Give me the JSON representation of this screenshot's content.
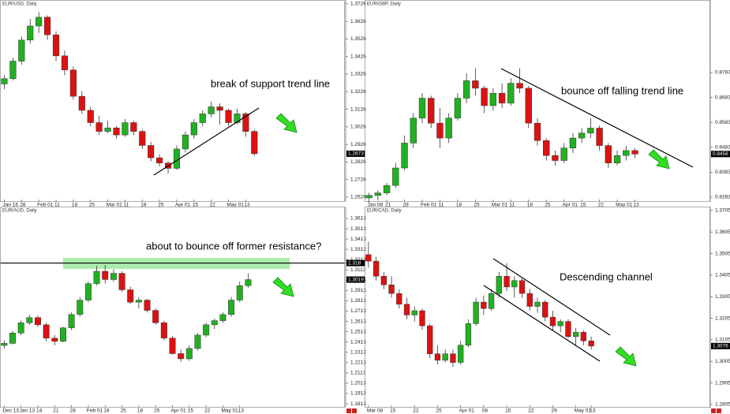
{
  "chart_data": [
    {
      "type": "candlestick",
      "title": "EUR/USD, Daily",
      "annotation": "break of support trend line",
      "categories": [
        "Jan 16",
        null,
        "28",
        null,
        "Feb 01",
        null,
        "11",
        null,
        "18",
        null,
        "25",
        null,
        "Mar 01",
        null,
        "11",
        null,
        "18",
        null,
        "25",
        null,
        "Apr 01",
        null,
        "15",
        null,
        "22",
        null,
        "May 01",
        null,
        "13",
        null
      ],
      "ohlc": [
        [
          1.327,
          1.332,
          1.324,
          1.33
        ],
        [
          1.33,
          1.342,
          1.329,
          1.34
        ],
        [
          1.34,
          1.354,
          1.338,
          1.352
        ],
        [
          1.352,
          1.364,
          1.35,
          1.36
        ],
        [
          1.36,
          1.368,
          1.356,
          1.365
        ],
        [
          1.365,
          1.366,
          1.352,
          1.355
        ],
        [
          1.355,
          1.357,
          1.34,
          1.343
        ],
        [
          1.343,
          1.346,
          1.332,
          1.335
        ],
        [
          1.335,
          1.337,
          1.318,
          1.32
        ],
        [
          1.32,
          1.323,
          1.31,
          1.312
        ],
        [
          1.312,
          1.314,
          1.303,
          1.305
        ],
        [
          1.305,
          1.309,
          1.298,
          1.3
        ],
        [
          1.3,
          1.306,
          1.299,
          1.302
        ],
        [
          1.302,
          1.303,
          1.296,
          1.298
        ],
        [
          1.298,
          1.307,
          1.297,
          1.305
        ],
        [
          1.305,
          1.306,
          1.298,
          1.3
        ],
        [
          1.3,
          1.301,
          1.29,
          1.292
        ],
        [
          1.292,
          1.294,
          1.283,
          1.285
        ],
        [
          1.285,
          1.287,
          1.28,
          1.282
        ],
        [
          1.282,
          1.283,
          1.276,
          1.279
        ],
        [
          1.279,
          1.292,
          1.278,
          1.29
        ],
        [
          1.29,
          1.3,
          1.288,
          1.298
        ],
        [
          1.298,
          1.307,
          1.296,
          1.305
        ],
        [
          1.305,
          1.312,
          1.303,
          1.31
        ],
        [
          1.31,
          1.317,
          1.308,
          1.314
        ],
        [
          1.314,
          1.316,
          1.304,
          1.312
        ],
        [
          1.312,
          1.313,
          1.303,
          1.305
        ],
        [
          1.305,
          1.313,
          1.304,
          1.31
        ],
        [
          1.31,
          1.311,
          1.297,
          1.3
        ],
        [
          1.3,
          1.301,
          1.286,
          1.2873
        ]
      ],
      "ylim": [
        1.2599,
        1.3748
      ],
      "yticks": [
        1.3726,
        1.3626,
        1.3526,
        1.3426,
        1.3326,
        1.3226,
        1.3126,
        1.3026,
        1.2926,
        1.2826,
        1.2726,
        1.2626
      ],
      "last_price": 1.2873,
      "up_color": "#22b022",
      "down_color": "#dd1111"
    },
    {
      "type": "candlestick",
      "title": "EUR/GBP, Daily",
      "annotation": "bounce off falling trend line",
      "categories": [
        "Jan 08",
        null,
        "21",
        null,
        "28",
        null,
        "Feb 01",
        null,
        "11",
        null,
        "18",
        null,
        "25",
        null,
        "Mar 01",
        null,
        "11",
        null,
        "18",
        null,
        "25",
        null,
        "Apr 01",
        null,
        "15",
        null,
        "22",
        null,
        "May 01",
        null,
        "13"
      ],
      "ohlc": [
        [
          0.828,
          0.83,
          0.826,
          0.829
        ],
        [
          0.829,
          0.831,
          0.827,
          0.83
        ],
        [
          0.83,
          0.834,
          0.829,
          0.833
        ],
        [
          0.833,
          0.842,
          0.832,
          0.84
        ],
        [
          0.84,
          0.853,
          0.839,
          0.85
        ],
        [
          0.85,
          0.862,
          0.848,
          0.86
        ],
        [
          0.86,
          0.87,
          0.858,
          0.868
        ],
        [
          0.868,
          0.869,
          0.856,
          0.858
        ],
        [
          0.858,
          0.864,
          0.848,
          0.852
        ],
        [
          0.852,
          0.862,
          0.85,
          0.86
        ],
        [
          0.86,
          0.87,
          0.859,
          0.868
        ],
        [
          0.868,
          0.878,
          0.866,
          0.875
        ],
        [
          0.875,
          0.88,
          0.869,
          0.872
        ],
        [
          0.872,
          0.873,
          0.862,
          0.865
        ],
        [
          0.865,
          0.872,
          0.863,
          0.87
        ],
        [
          0.87,
          0.874,
          0.864,
          0.866
        ],
        [
          0.866,
          0.876,
          0.865,
          0.874
        ],
        [
          0.874,
          0.88,
          0.87,
          0.872
        ],
        [
          0.872,
          0.873,
          0.856,
          0.858
        ],
        [
          0.858,
          0.86,
          0.849,
          0.851
        ],
        [
          0.851,
          0.852,
          0.843,
          0.845
        ],
        [
          0.845,
          0.847,
          0.841,
          0.843
        ],
        [
          0.843,
          0.85,
          0.842,
          0.848
        ],
        [
          0.848,
          0.854,
          0.846,
          0.852
        ],
        [
          0.852,
          0.856,
          0.85,
          0.854
        ],
        [
          0.854,
          0.86,
          0.852,
          0.856
        ],
        [
          0.856,
          0.857,
          0.847,
          0.849
        ],
        [
          0.849,
          0.85,
          0.84,
          0.842
        ],
        [
          0.842,
          0.847,
          0.841,
          0.845
        ],
        [
          0.845,
          0.849,
          0.843,
          0.847
        ],
        [
          0.847,
          0.848,
          0.844,
          0.8456
        ]
      ],
      "ylim": [
        0.8264,
        0.9074
      ],
      "yticks": [
        0.8783,
        0.8683,
        0.8583,
        0.8483,
        0.8383,
        0.8283
      ],
      "last_price": 0.8456,
      "up_color": "#22b022",
      "down_color": "#dd1111"
    },
    {
      "type": "candlestick",
      "title": "EUR/AUD, Daily",
      "annotation": "about to bounce off former resistance?",
      "categories": [
        "Dec 13",
        null,
        "Jan 13",
        null,
        "14",
        null,
        "21",
        null,
        "28",
        null,
        "Feb 01",
        null,
        "18",
        null,
        "25",
        null,
        "18",
        null,
        "25",
        null,
        "Apr 01",
        null,
        "15",
        null,
        "22",
        null,
        "May 01",
        null,
        "13",
        null
      ],
      "ohlc": [
        [
          1.238,
          1.243,
          1.235,
          1.24
        ],
        [
          1.24,
          1.252,
          1.239,
          1.25
        ],
        [
          1.25,
          1.262,
          1.248,
          1.26
        ],
        [
          1.26,
          1.268,
          1.258,
          1.265
        ],
        [
          1.265,
          1.267,
          1.256,
          1.258
        ],
        [
          1.258,
          1.26,
          1.242,
          1.245
        ],
        [
          1.245,
          1.248,
          1.238,
          1.242
        ],
        [
          1.242,
          1.256,
          1.241,
          1.255
        ],
        [
          1.255,
          1.27,
          1.253,
          1.268
        ],
        [
          1.268,
          1.285,
          1.266,
          1.282
        ],
        [
          1.282,
          1.3,
          1.28,
          1.298
        ],
        [
          1.298,
          1.315,
          1.296,
          1.31
        ],
        [
          1.31,
          1.316,
          1.298,
          1.302
        ],
        [
          1.302,
          1.312,
          1.3,
          1.308
        ],
        [
          1.308,
          1.31,
          1.29,
          1.292
        ],
        [
          1.292,
          1.295,
          1.278,
          1.28
        ],
        [
          1.28,
          1.285,
          1.274,
          1.282
        ],
        [
          1.282,
          1.283,
          1.27,
          1.272
        ],
        [
          1.272,
          1.274,
          1.258,
          1.26
        ],
        [
          1.26,
          1.262,
          1.243,
          1.245
        ],
        [
          1.245,
          1.247,
          1.229,
          1.23
        ],
        [
          1.23,
          1.234,
          1.222,
          1.225
        ],
        [
          1.225,
          1.238,
          1.223,
          1.235
        ],
        [
          1.235,
          1.25,
          1.233,
          1.248
        ],
        [
          1.248,
          1.26,
          1.246,
          1.258
        ],
        [
          1.258,
          1.264,
          1.254,
          1.262
        ],
        [
          1.262,
          1.27,
          1.26,
          1.268
        ],
        [
          1.268,
          1.285,
          1.266,
          1.282
        ],
        [
          1.282,
          1.3,
          1.28,
          1.296
        ],
        [
          1.296,
          1.308,
          1.294,
          1.3019
        ]
      ],
      "ylim": [
        1.1775,
        1.3728
      ],
      "yticks": [
        1.3613,
        1.3513,
        1.3413,
        1.3313,
        1.3213,
        1.3113,
        1.3013,
        1.2913,
        1.2813,
        1.2713,
        1.2613,
        1.2513,
        1.2413,
        1.2313,
        1.2213,
        1.2113,
        1.2013,
        1.1913,
        1.1813
      ],
      "resistance": 1.318,
      "last_price": 1.3019,
      "up_color": "#22b022",
      "down_color": "#dd1111"
    },
    {
      "type": "candlestick",
      "title": "EUR/CAD, Daily",
      "annotation": "Descending channel",
      "categories": [
        "Mar 08",
        null,
        null,
        "15",
        null,
        null,
        "22",
        null,
        null,
        "25",
        null,
        null,
        "Apr 01",
        null,
        null,
        "08",
        null,
        null,
        "15",
        null,
        null,
        "22",
        null,
        null,
        "29",
        null,
        null,
        "May 01",
        null,
        "13"
      ],
      "ohlc": [
        [
          1.35,
          1.356,
          1.344,
          1.347
        ],
        [
          1.347,
          1.349,
          1.338,
          1.34
        ],
        [
          1.34,
          1.342,
          1.334,
          1.336
        ],
        [
          1.336,
          1.34,
          1.33,
          1.332
        ],
        [
          1.332,
          1.334,
          1.325,
          1.327
        ],
        [
          1.327,
          1.33,
          1.32,
          1.322
        ],
        [
          1.322,
          1.326,
          1.319,
          1.324
        ],
        [
          1.324,
          1.325,
          1.315,
          1.317
        ],
        [
          1.317,
          1.318,
          1.302,
          1.304
        ],
        [
          1.304,
          1.308,
          1.299,
          1.301
        ],
        [
          1.301,
          1.306,
          1.3,
          1.304
        ],
        [
          1.304,
          1.306,
          1.298,
          1.3
        ],
        [
          1.3,
          1.31,
          1.299,
          1.308
        ],
        [
          1.308,
          1.32,
          1.307,
          1.318
        ],
        [
          1.318,
          1.33,
          1.317,
          1.328
        ],
        [
          1.328,
          1.331,
          1.322,
          1.325
        ],
        [
          1.325,
          1.334,
          1.324,
          1.332
        ],
        [
          1.332,
          1.342,
          1.33,
          1.34
        ],
        [
          1.34,
          1.346,
          1.333,
          1.335
        ],
        [
          1.335,
          1.34,
          1.33,
          1.338
        ],
        [
          1.338,
          1.339,
          1.33,
          1.332
        ],
        [
          1.332,
          1.334,
          1.324,
          1.326
        ],
        [
          1.326,
          1.33,
          1.323,
          1.328
        ],
        [
          1.328,
          1.329,
          1.319,
          1.321
        ],
        [
          1.321,
          1.324,
          1.315,
          1.317
        ],
        [
          1.317,
          1.32,
          1.314,
          1.319
        ],
        [
          1.319,
          1.32,
          1.311,
          1.312
        ],
        [
          1.312,
          1.316,
          1.308,
          1.314
        ],
        [
          1.314,
          1.315,
          1.308,
          1.31
        ],
        [
          1.31,
          1.312,
          1.306,
          1.3076
        ]
      ],
      "ylim": [
        1.279,
        1.3723
      ],
      "yticks": [
        1.3705,
        1.3605,
        1.3505,
        1.3405,
        1.3305,
        1.3205,
        1.3105,
        1.3005,
        1.2905,
        1.2805
      ],
      "last_price": 1.3076,
      "up_color": "#22b022",
      "down_color": "#dd1111"
    }
  ]
}
